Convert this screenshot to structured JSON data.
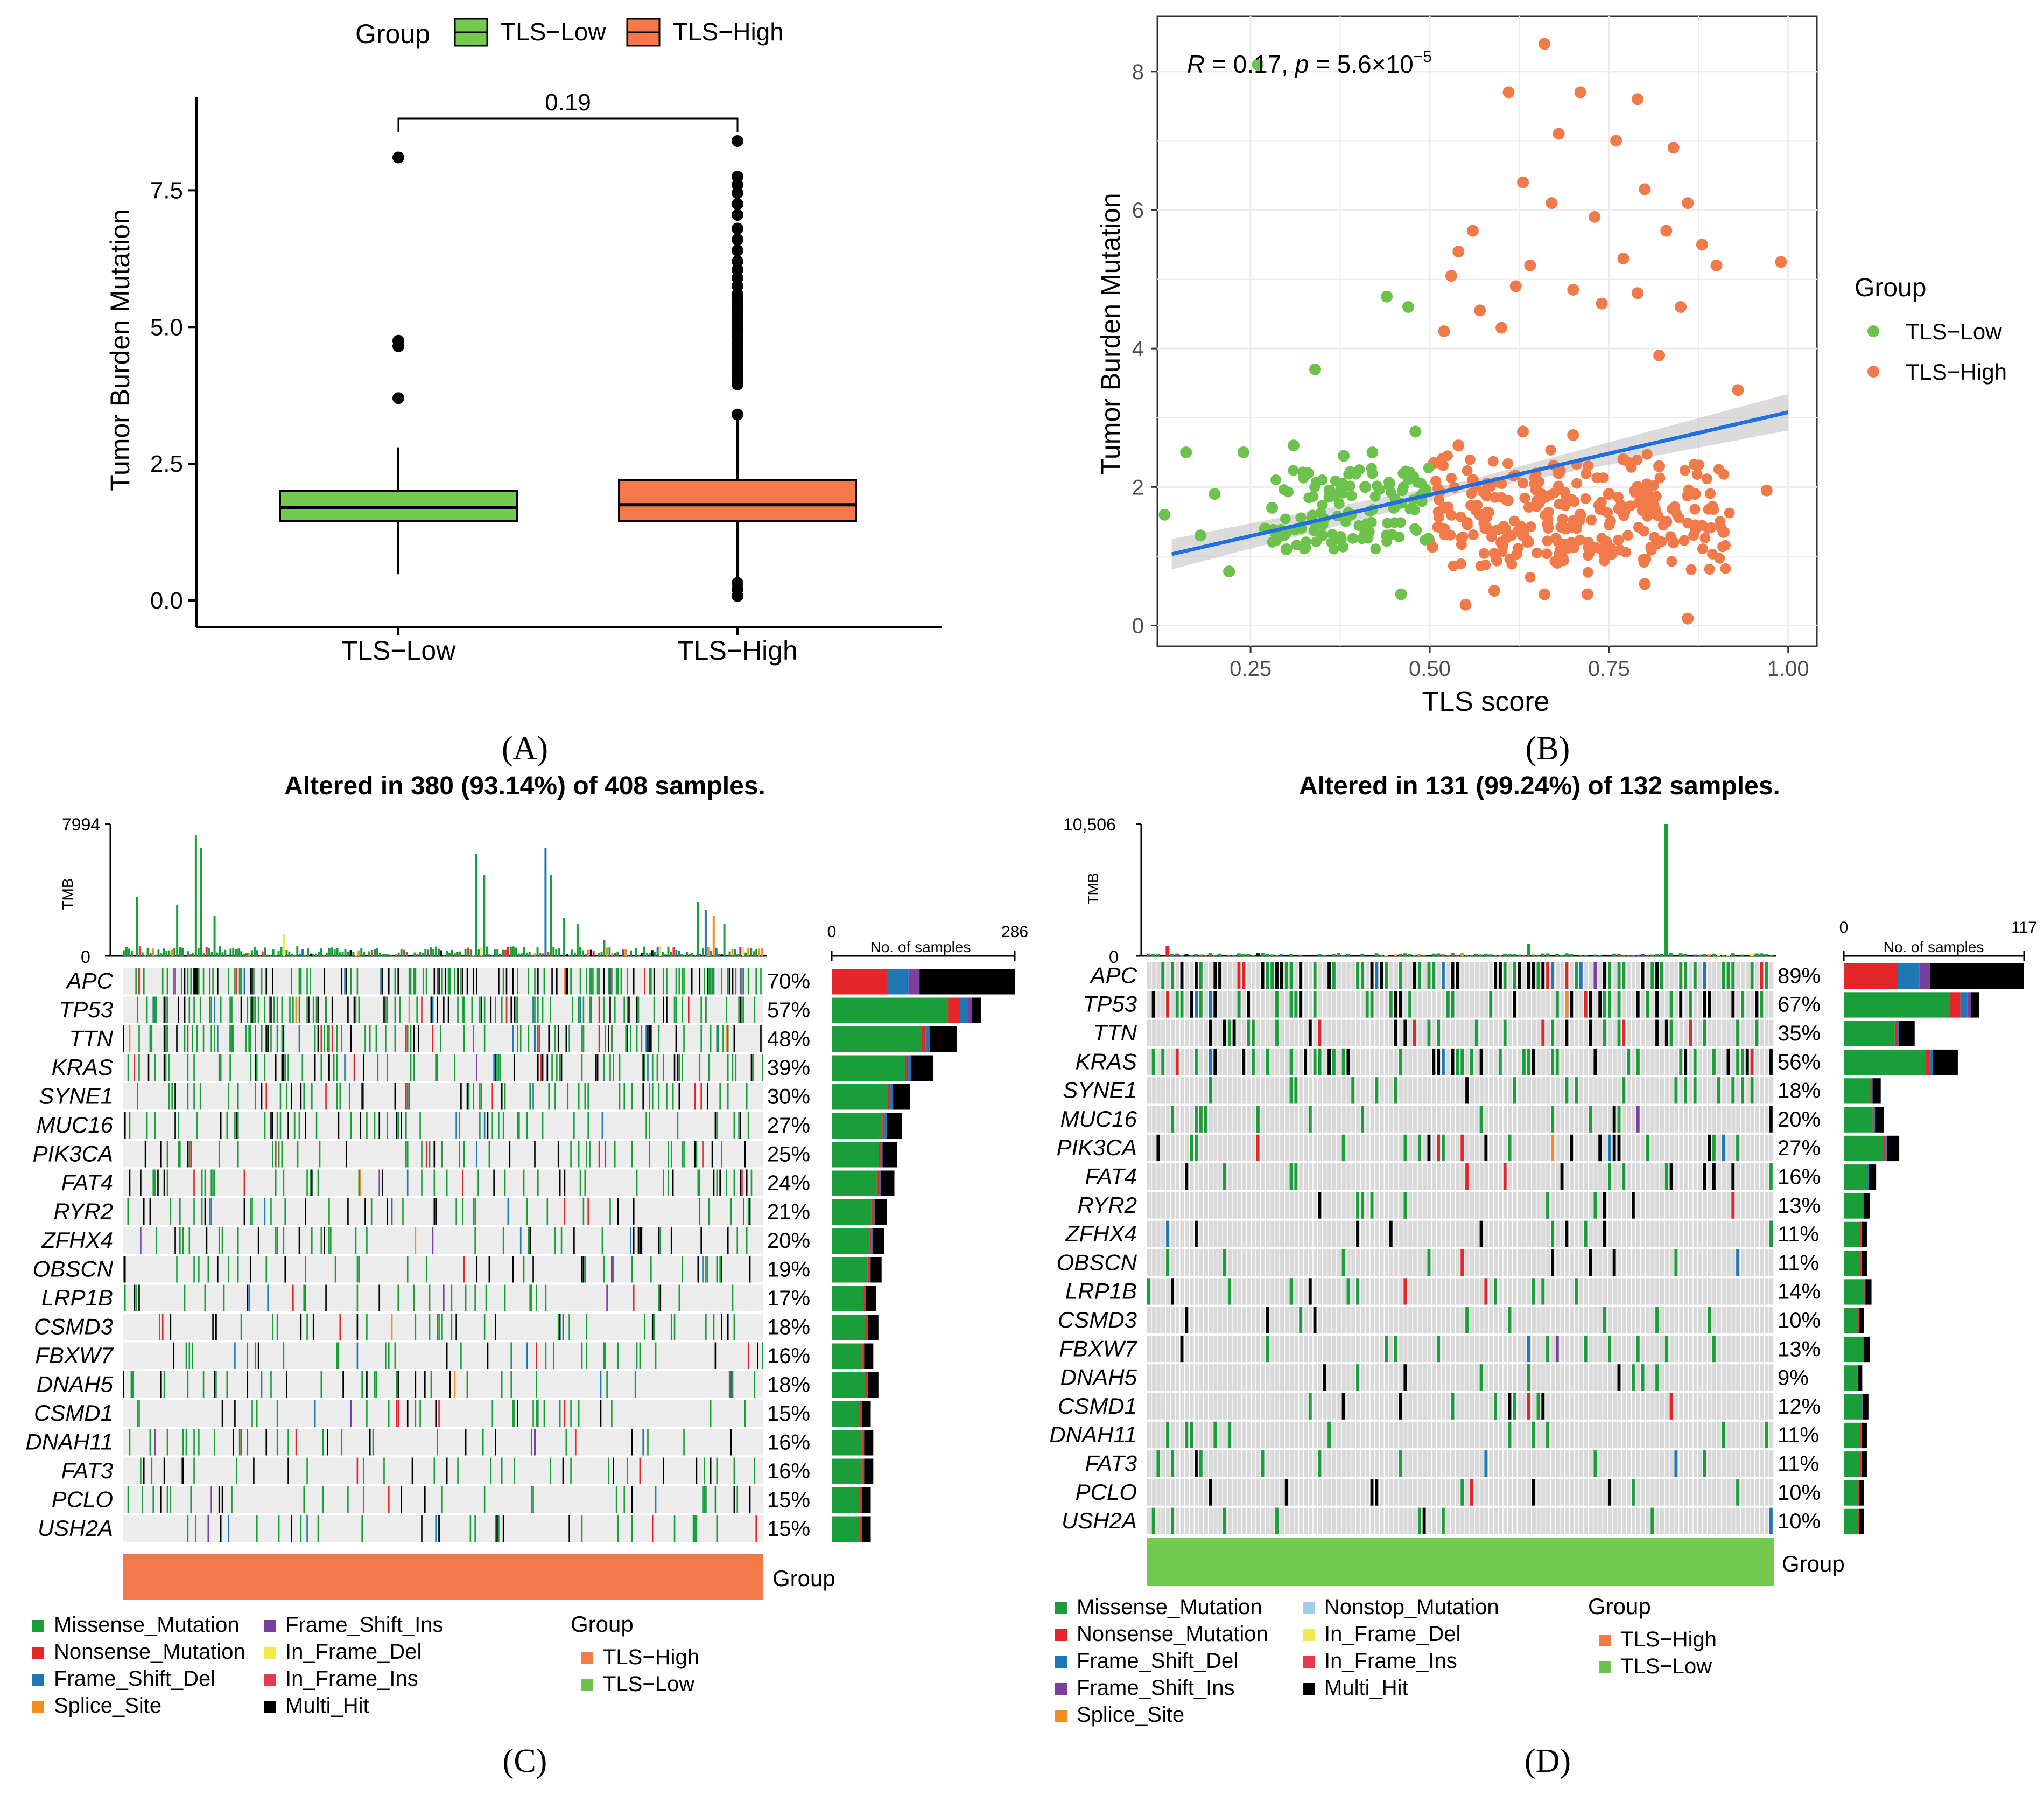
{
  "panel_labels": [
    "(A)",
    "(B)",
    "(C)",
    "(D)"
  ],
  "colors": {
    "tls_low": "#6cc24a",
    "tls_high": "#f07a4a",
    "box_low": "#74c94f",
    "box_high": "#f4784a",
    "missense": "#1a9e3a",
    "nonsense": "#e3262a",
    "frame_shift_del": "#1f77b4",
    "frame_shift_ins": "#7b3fa0",
    "in_frame_del": "#f2e94e",
    "in_frame_ins": "#e8384f",
    "splice_site": "#f58c1f",
    "nonstop": "#9fd0e8",
    "multi_hit": "#000000",
    "regline": "#1f6fe0",
    "grey_cell": "#d9d9d9"
  },
  "chart_data": [
    {
      "panel": "A",
      "type": "box",
      "legend_title": "Group",
      "legend": [
        "TLS−Low",
        "TLS−High"
      ],
      "categories": [
        "TLS−Low",
        "TLS−High"
      ],
      "ylabel": "Tumor Burden Mutation",
      "ylim": [
        0,
        9
      ],
      "yticks": [
        0.0,
        2.5,
        5.0,
        7.5
      ],
      "ytick_labels": [
        "0.0",
        "2.5",
        "5.0",
        "7.5"
      ],
      "pvalue": "0.19",
      "boxes": [
        {
          "name": "TLS−Low",
          "min": 0.48,
          "q1": 1.45,
          "median": 1.7,
          "q3": 2.0,
          "max": 2.8,
          "outliers": [
            8.1,
            4.75,
            4.65,
            3.7
          ]
        },
        {
          "name": "TLS−High",
          "min": 0.3,
          "q1": 1.45,
          "median": 1.75,
          "q3": 2.2,
          "max": 3.3,
          "outliers": [
            0.08,
            0.2,
            0.32,
            3.4,
            3.95,
            4.0,
            4.1,
            4.2,
            4.3,
            4.4,
            4.5,
            4.6,
            4.7,
            4.8,
            4.9,
            5.0,
            5.1,
            5.2,
            5.3,
            5.4,
            5.5,
            5.6,
            5.75,
            5.9,
            6.05,
            6.2,
            6.4,
            6.6,
            6.8,
            7.05,
            7.25,
            7.45,
            7.6,
            7.75,
            8.4
          ]
        }
      ]
    },
    {
      "panel": "B",
      "type": "scatter",
      "annotation": {
        "r_label": "R",
        "r_value": " = 0.17, ",
        "p_label": "p",
        "p_value": " = 5.6×10",
        "p_exp": "−5"
      },
      "xlabel": "TLS score",
      "ylabel": "Tumor Burden Mutation",
      "xlim": [
        0.12,
        1.04
      ],
      "ylim": [
        -0.3,
        8.8
      ],
      "xticks": [
        0.25,
        0.5,
        0.75,
        1.0
      ],
      "xtick_labels": [
        "0.25",
        "0.50",
        "0.75",
        "1.00"
      ],
      "yticks": [
        0,
        2,
        4,
        6,
        8
      ],
      "ytick_labels": [
        "0",
        "2",
        "4",
        "6",
        "8"
      ],
      "legend_title": "Group",
      "legend": [
        "TLS−Low",
        "TLS−High"
      ],
      "regression": {
        "x0": 0.14,
        "y0": 1.03,
        "x1": 1.0,
        "y1": 3.08,
        "band": 0.22
      },
      "series": [
        {
          "name": "TLS−Low",
          "points": [
            [
              0.16,
              2.5
            ],
            [
              0.26,
              8.1
            ],
            [
              0.44,
              4.75
            ],
            [
              0.47,
              4.6
            ],
            [
              0.34,
              3.7
            ],
            [
              0.22,
              0.78
            ],
            [
              0.46,
              0.45
            ],
            [
              0.2,
              1.9
            ],
            [
              0.24,
              2.5
            ],
            [
              0.31,
              2.6
            ],
            [
              0.38,
              2.45
            ],
            [
              0.42,
              2.5
            ],
            [
              0.48,
              2.8
            ],
            [
              0.13,
              1.6
            ],
            [
              0.18,
              1.3
            ],
            [
              0.28,
              1.7
            ],
            [
              0.3,
              1.1
            ],
            [
              0.36,
              1.95
            ],
            [
              0.44,
              1.3
            ],
            [
              0.33,
              2.2
            ],
            [
              0.39,
              1.6
            ],
            [
              0.27,
              1.4
            ],
            [
              0.35,
              1.3
            ],
            [
              0.41,
              2.0
            ],
            [
              0.45,
              1.7
            ],
            [
              0.49,
              1.9
            ]
          ]
        },
        {
          "name": "TLS−High",
          "points": [
            [
              0.66,
              8.4
            ],
            [
              0.61,
              7.7
            ],
            [
              0.71,
              7.7
            ],
            [
              0.79,
              7.6
            ],
            [
              0.68,
              7.1
            ],
            [
              0.76,
              7.0
            ],
            [
              0.84,
              6.9
            ],
            [
              0.63,
              6.4
            ],
            [
              0.8,
              6.3
            ],
            [
              0.67,
              6.1
            ],
            [
              0.86,
              6.1
            ],
            [
              0.56,
              5.7
            ],
            [
              0.73,
              5.9
            ],
            [
              0.83,
              5.7
            ],
            [
              0.88,
              5.5
            ],
            [
              0.9,
              5.2
            ],
            [
              0.54,
              5.4
            ],
            [
              0.64,
              5.2
            ],
            [
              0.77,
              5.3
            ],
            [
              0.99,
              5.25
            ],
            [
              0.53,
              5.05
            ],
            [
              0.62,
              4.9
            ],
            [
              0.7,
              4.85
            ],
            [
              0.79,
              4.8
            ],
            [
              0.85,
              4.6
            ],
            [
              0.57,
              4.55
            ],
            [
              0.74,
              4.65
            ],
            [
              0.52,
              4.25
            ],
            [
              0.6,
              4.3
            ],
            [
              0.82,
              3.9
            ],
            [
              0.93,
              3.4
            ],
            [
              0.55,
              0.3
            ],
            [
              0.66,
              0.45
            ],
            [
              0.86,
              0.1
            ],
            [
              0.72,
              0.45
            ],
            [
              0.59,
              0.5
            ],
            [
              0.8,
              0.6
            ],
            [
              0.91,
              1.35
            ],
            [
              0.97,
              1.95
            ],
            [
              0.63,
              2.8
            ],
            [
              0.7,
              2.75
            ],
            [
              0.54,
              2.6
            ],
            [
              0.77,
              2.4
            ],
            [
              0.58,
              1.4
            ],
            [
              0.65,
              1.8
            ],
            [
              0.74,
              1.1
            ],
            [
              0.83,
              1.5
            ],
            [
              0.68,
              2.2
            ],
            [
              0.52,
              1.7
            ],
            [
              0.87,
              1.9
            ],
            [
              0.6,
              1.2
            ],
            [
              0.71,
              1.6
            ],
            [
              0.79,
              2.0
            ],
            [
              0.56,
              2.1
            ],
            [
              0.63,
              1.3
            ],
            [
              0.75,
              1.9
            ],
            [
              0.84,
              1.2
            ],
            [
              0.69,
              1.4
            ],
            [
              0.57,
              1.6
            ],
            [
              0.82,
              2.3
            ]
          ]
        }
      ]
    },
    {
      "panel": "C",
      "type": "oncoplot",
      "title": "Altered in 380 (93.14%) of 408 samples.",
      "tmb_label": "TMB",
      "tmb_max": "7994",
      "tmb_min": "0",
      "bar_axis_min": "0",
      "bar_axis_max": "286",
      "bar_axis_label": "No. of samples",
      "group_label": "Group",
      "group_value": "TLS−High",
      "genes": [
        "APC",
        "TP53",
        "TTN",
        "KRAS",
        "SYNE1",
        "MUC16",
        "PIK3CA",
        "FAT4",
        "RYR2",
        "ZFHX4",
        "OBSCN",
        "LRP1B",
        "CSMD3",
        "FBXW7",
        "DNAH5",
        "CSMD1",
        "DNAH11",
        "FAT3",
        "PCLO",
        "USH2A"
      ],
      "percents": [
        "70%",
        "57%",
        "48%",
        "39%",
        "30%",
        "27%",
        "25%",
        "24%",
        "21%",
        "20%",
        "19%",
        "17%",
        "18%",
        "16%",
        "18%",
        "15%",
        "16%",
        "16%",
        "15%",
        "15%"
      ],
      "sample_counts": [
        286,
        233,
        196,
        159,
        122,
        110,
        102,
        98,
        86,
        82,
        78,
        69,
        73,
        65,
        73,
        61,
        65,
        65,
        61,
        61
      ],
      "legend_title": "Group",
      "legend": [
        "Missense_Mutation",
        "Nonsense_Mutation",
        "Frame_Shift_Del",
        "Splice_Site",
        "Frame_Shift_Ins",
        "In_Frame_Del",
        "In_Frame_Ins",
        "Multi_Hit"
      ],
      "group_legend": [
        "TLS−High",
        "TLS−Low"
      ]
    },
    {
      "panel": "D",
      "type": "oncoplot",
      "title": "Altered in 131 (99.24%) of 132 samples.",
      "tmb_label": "TMB",
      "tmb_max": "10,506",
      "tmb_min": "0",
      "bar_axis_min": "0",
      "bar_axis_max": "117",
      "bar_axis_label": "No. of samples",
      "group_label": "Group",
      "group_value": "TLS−Low",
      "genes": [
        "APC",
        "TP53",
        "TTN",
        "KRAS",
        "SYNE1",
        "MUC16",
        "PIK3CA",
        "FAT4",
        "RYR2",
        "ZFHX4",
        "OBSCN",
        "LRP1B",
        "CSMD3",
        "FBXW7",
        "DNAH5",
        "CSMD1",
        "DNAH11",
        "FAT3",
        "PCLO",
        "USH2A"
      ],
      "percents": [
        "89%",
        "67%",
        "35%",
        "56%",
        "18%",
        "20%",
        "27%",
        "16%",
        "13%",
        "11%",
        "11%",
        "14%",
        "10%",
        "13%",
        "9%",
        "12%",
        "11%",
        "11%",
        "10%",
        "10%"
      ],
      "sample_counts": [
        117,
        88,
        46,
        74,
        24,
        26,
        36,
        21,
        17,
        15,
        15,
        18,
        13,
        17,
        12,
        16,
        15,
        15,
        13,
        13
      ],
      "legend_title": "Group",
      "legend": [
        "Missense_Mutation",
        "Nonsense_Mutation",
        "Frame_Shift_Del",
        "Frame_Shift_Ins",
        "Splice_Site",
        "Nonstop_Mutation",
        "In_Frame_Del",
        "In_Frame_Ins",
        "Multi_Hit"
      ],
      "group_legend": [
        "TLS−High",
        "TLS−Low"
      ]
    }
  ]
}
